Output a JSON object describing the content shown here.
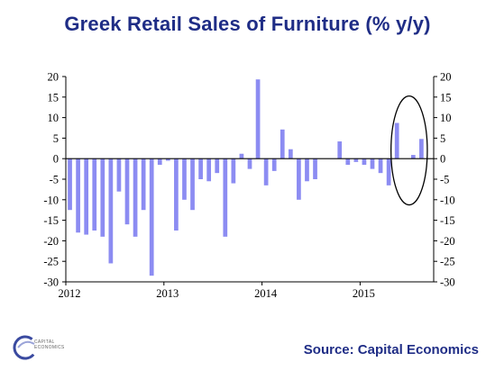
{
  "title": "Greek Retail Sales of Furniture (% y/y)",
  "source": "Source: Capital Economics",
  "logo": {
    "name": "CAPITAL\nECONOMICS"
  },
  "colors": {
    "bars": "#8c8cf2",
    "title": "#1f2d86",
    "axis": "#000000",
    "circle": "#000000"
  },
  "chart_data": {
    "type": "bar",
    "title": "Greek Retail Sales of Furniture (% y/y)",
    "xlabel": "",
    "ylabel": "",
    "ylim": [
      -30,
      20
    ],
    "yticks": [
      20,
      15,
      10,
      5,
      0,
      -5,
      -10,
      -15,
      -20,
      -25,
      -30
    ],
    "grid": false,
    "axes": "left and right",
    "x_start": "2012-01",
    "xtick_labels": [
      {
        "label": "2012",
        "month": "2012-01"
      },
      {
        "label": "2013",
        "month": "2013-01"
      },
      {
        "label": "2014",
        "month": "2014-01"
      },
      {
        "label": "2015",
        "month": "2015-01"
      }
    ],
    "series": [
      {
        "values": [
          -12.5,
          -18,
          -18.5,
          -17.5,
          -19,
          -25.5,
          -8,
          -16,
          -19,
          -12.5,
          -28.5,
          -1.5,
          -0.5,
          -17.5,
          -10,
          -12.5,
          -5,
          -5.5,
          -3.5,
          -19,
          -6,
          1.2,
          -2.5,
          19.3,
          -6.5,
          -3,
          7.1,
          2.3,
          -10,
          -5.5,
          -5,
          0,
          0,
          4.2,
          -1.5,
          -0.8,
          -1.5,
          -2.5,
          -3.5,
          -6.5,
          8.7,
          0,
          0.9,
          4.8,
          0
        ],
        "highlighted_months": [
          "2015-05",
          "2015-06",
          "2015-07",
          "2015-08"
        ]
      }
    ]
  }
}
